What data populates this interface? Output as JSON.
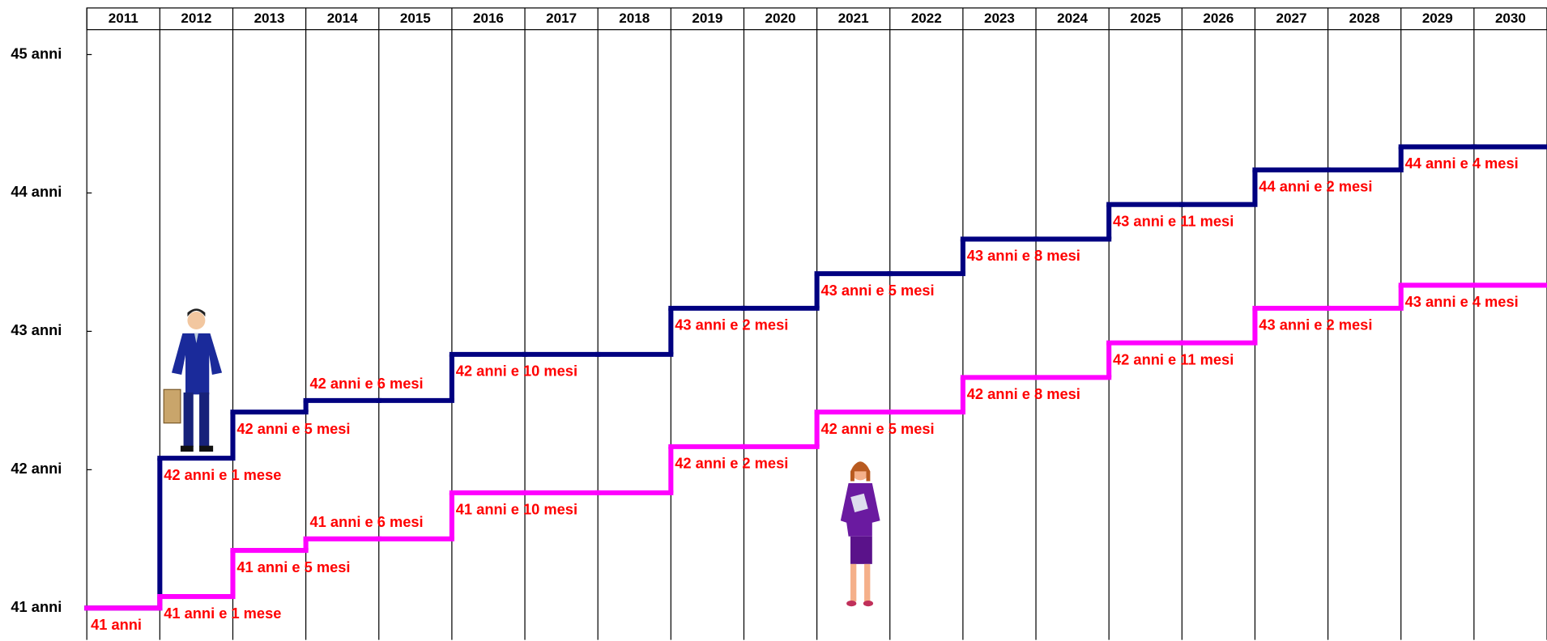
{
  "chart_data": {
    "type": "step",
    "categories": [
      "2011",
      "2012",
      "2013",
      "2014",
      "2015",
      "2016",
      "2017",
      "2018",
      "2019",
      "2020",
      "2021",
      "2022",
      "2023",
      "2024",
      "2025",
      "2026",
      "2027",
      "2028",
      "2029",
      "2030"
    ],
    "ylim": [
      40.77,
      45.18
    ],
    "yticks": [
      {
        "value": 41,
        "label": "41 anni"
      },
      {
        "value": 42,
        "label": "42 anni"
      },
      {
        "value": 43,
        "label": "43 anni"
      },
      {
        "value": 44,
        "label": "44 anni"
      },
      {
        "value": 45,
        "label": "45 anni"
      }
    ],
    "series": [
      {
        "color": "#000080",
        "values": [
          41,
          42.0833,
          42.4167,
          42.5,
          42.5,
          42.8333,
          42.8333,
          42.8333,
          43.1667,
          43.1667,
          43.4167,
          43.4167,
          43.6667,
          43.6667,
          43.9167,
          43.9167,
          44.1667,
          44.1667,
          44.3333,
          44.3333
        ],
        "value_labels": [
          null,
          "42 anni e 1 mese",
          "42 anni e 5 mesi",
          "42 anni e 6 mesi",
          null,
          "42 anni e 10 mesi",
          null,
          null,
          "43 anni e 2 mesi",
          null,
          "43 anni e 5 mesi",
          null,
          "43 anni e 8 mesi",
          null,
          "43 anni e 11 mesi",
          null,
          "44 anni e 2 mesi",
          null,
          "44 anni e 4 mesi",
          null
        ]
      },
      {
        "color": "#ff00ff",
        "values": [
          41,
          41.0833,
          41.4167,
          41.5,
          41.5,
          41.8333,
          41.8333,
          41.8333,
          42.1667,
          42.1667,
          42.4167,
          42.4167,
          42.6667,
          42.6667,
          42.9167,
          42.9167,
          43.1667,
          43.1667,
          43.3333,
          43.3333
        ],
        "value_labels": [
          "41 anni",
          "41 anni e 1 mese",
          "41 anni e 5 mesi",
          "41 anni e 6 mesi",
          null,
          "41 anni e 10 mesi",
          null,
          null,
          "42 anni e 2 mesi",
          null,
          "42 anni e 5 mesi",
          null,
          "42 anni e 8 mesi",
          null,
          "42 anni e 11 mesi",
          null,
          "43 anni e 2 mesi",
          null,
          "43 anni e 4 mesi",
          null
        ]
      }
    ]
  }
}
